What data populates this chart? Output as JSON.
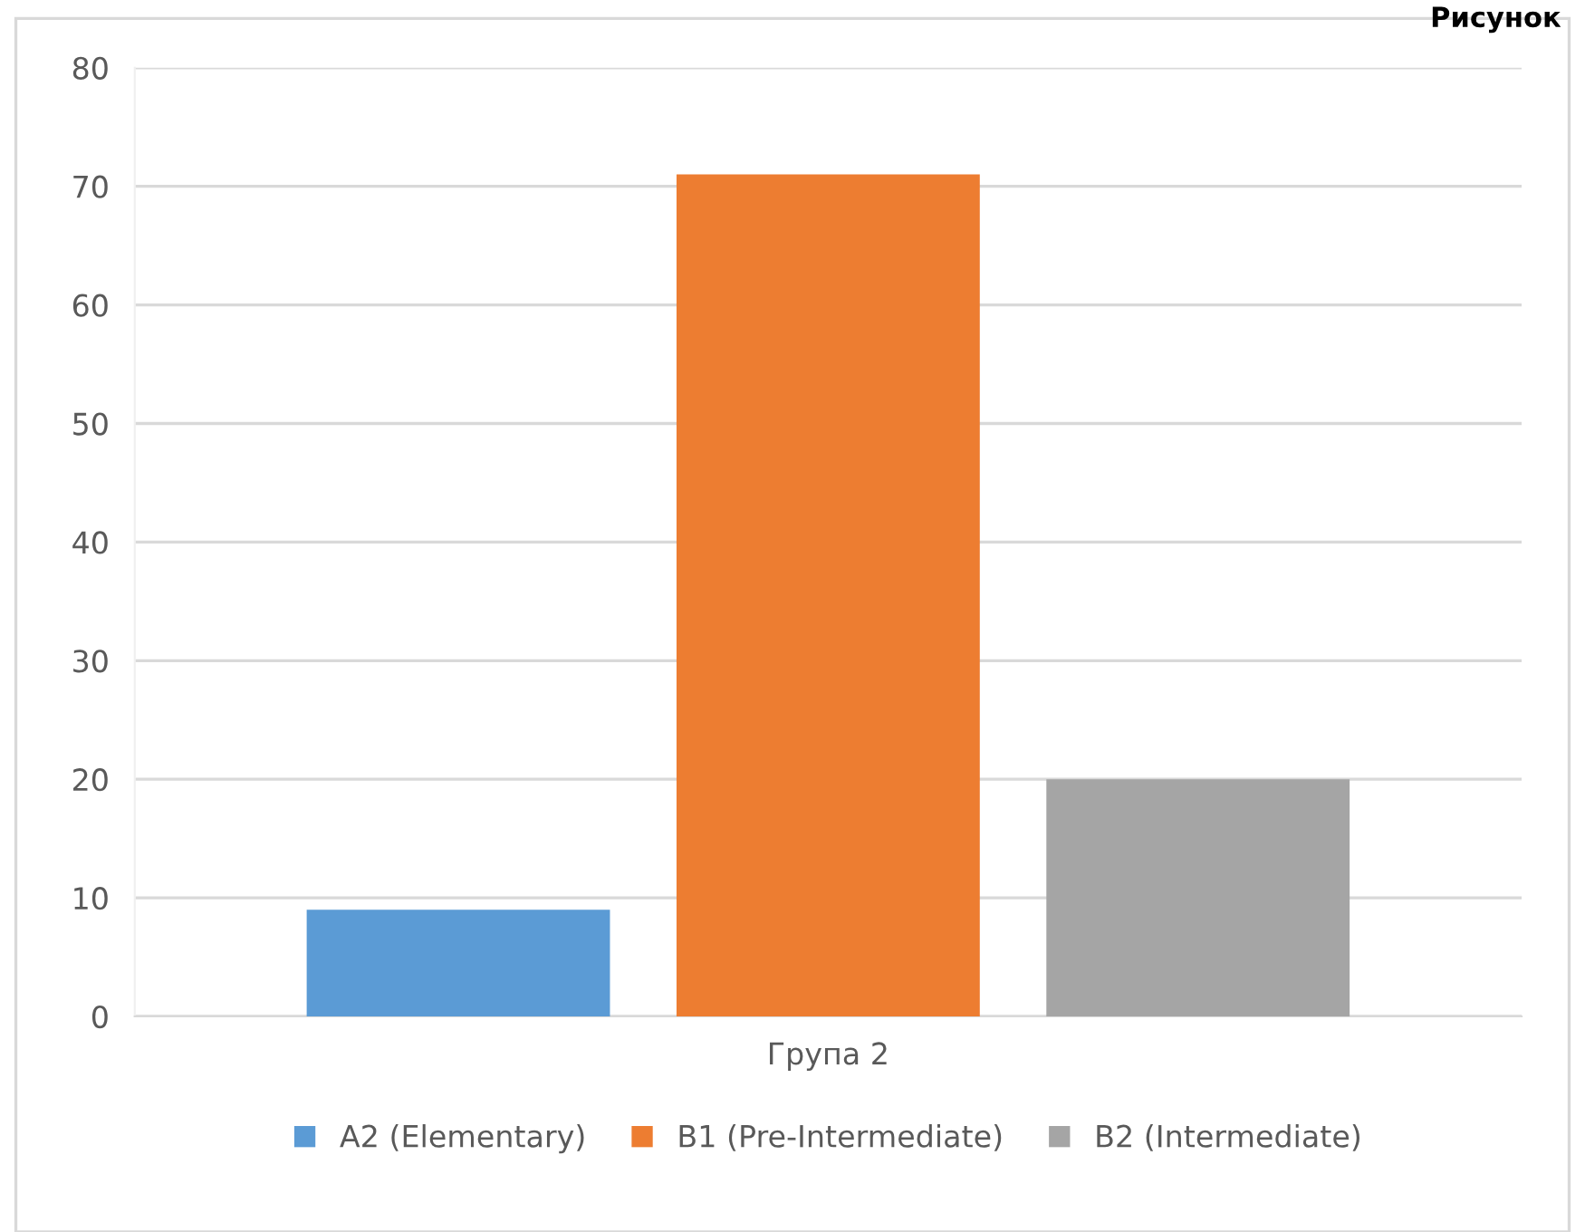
{
  "chart_data": {
    "type": "bar",
    "categories": [
      "Група 2"
    ],
    "series": [
      {
        "name": "A2 (Elementary)",
        "color": "#5b9bd5",
        "values": [
          9
        ]
      },
      {
        "name": "B1 (Pre-Intermediate)",
        "color": "#ed7d31",
        "values": [
          71
        ]
      },
      {
        "name": "B2 (Intermediate)",
        "color": "#a5a5a5",
        "values": [
          20
        ]
      }
    ],
    "ylim": [
      0,
      80
    ],
    "yticks": [
      0,
      10,
      20,
      30,
      40,
      50,
      60,
      70,
      80
    ],
    "grid": "y",
    "legend": "bottom",
    "annotations": [
      "Рисунок"
    ]
  }
}
